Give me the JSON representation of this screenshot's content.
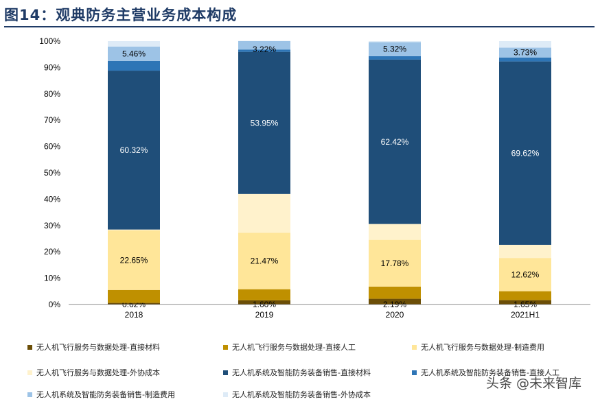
{
  "header": {
    "title": "图14：观典防务主营业务成本构成"
  },
  "watermark": {
    "text": "头条 @未来智库"
  },
  "chart_data": {
    "type": "bar",
    "stacked": true,
    "percent": true,
    "categories": [
      "2018",
      "2019",
      "2020",
      "2021H1"
    ],
    "ylim": [
      0,
      100
    ],
    "yticks": [
      "0%",
      "10%",
      "20%",
      "30%",
      "40%",
      "50%",
      "60%",
      "70%",
      "80%",
      "90%",
      "100%"
    ],
    "grid": false,
    "legend_position": "bottom",
    "series": [
      {
        "name": "无人机飞行服务与数据处理-直接材料",
        "color": "#6b4e07",
        "values": [
          0.62,
          1.6,
          2.19,
          1.65
        ],
        "labels": [
          "0.62%",
          "1.60%",
          "2.19%",
          "1.65%"
        ]
      },
      {
        "name": "无人机飞行服务与数据处理-直接人工",
        "color": "#bf9000",
        "values": [
          4.9,
          4.2,
          4.6,
          3.4
        ],
        "labels": [
          "",
          "",
          "",
          ""
        ]
      },
      {
        "name": "无人机飞行服务与数据处理-制造费用",
        "color": "#ffe699",
        "values": [
          22.65,
          21.47,
          17.78,
          12.62
        ],
        "labels": [
          "22.65%",
          "21.47%",
          "17.78%",
          "12.62%"
        ]
      },
      {
        "name": "无人机飞行服务与数据处理-外协成本",
        "color": "#fff2cc",
        "values": [
          0.3,
          14.7,
          6.0,
          5.0
        ],
        "labels": [
          "",
          "",
          "",
          ""
        ]
      },
      {
        "name": "无人机系统及智能防务装备销售-直接材料",
        "color": "#1f4e79",
        "values": [
          60.32,
          53.95,
          62.42,
          69.62
        ],
        "labels": [
          "60.32%",
          "53.95%",
          "62.42%",
          "69.62%"
        ]
      },
      {
        "name": "无人机系统及智能防务装备销售-直接人工",
        "color": "#2e75b6",
        "values": [
          3.7,
          0.9,
          1.3,
          1.5
        ],
        "labels": [
          "",
          "",
          "",
          ""
        ]
      },
      {
        "name": "无人机系统及智能防务装备销售-制造费用",
        "color": "#9dc3e6",
        "values": [
          5.46,
          3.22,
          5.32,
          3.73
        ],
        "labels": [
          "5.46%",
          "3.22%",
          "5.32%",
          "3.73%"
        ]
      },
      {
        "name": "无人机系统及智能防务装备销售-外协成本",
        "color": "#deebf7",
        "values": [
          2.05,
          0.0,
          0.39,
          2.48
        ],
        "labels": [
          "",
          "",
          "",
          ""
        ]
      }
    ]
  }
}
